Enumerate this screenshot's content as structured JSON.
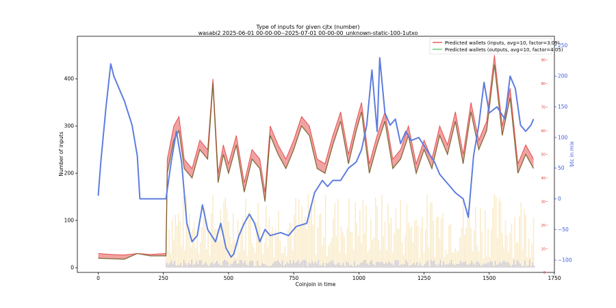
{
  "chart_data": {
    "type": "line",
    "title": "Type of inputs for given cjtx (number)",
    "subtitle": "wasabi2 2025-06-01 00-00-00--2025-07-01 00-00-00_unknown-static-100-1utxo",
    "xlabel": "Coinjoin in time",
    "ylabel": "Number of inputs",
    "y2label": "btc in mix",
    "xlim": [
      -80,
      1750
    ],
    "ylim": [
      -10,
      490
    ],
    "y2lim": [
      -120,
      265
    ],
    "y3lim": [
      0,
      100
    ],
    "x_ticks": [
      "0",
      "250",
      "500",
      "750",
      "1000",
      "1250",
      "1500",
      "1750"
    ],
    "y_ticks": [
      "0",
      "100",
      "200",
      "300",
      "400"
    ],
    "y2_ticks": [
      "−100",
      "−50",
      "0",
      "50",
      "100",
      "150",
      "200",
      "250"
    ],
    "y3_ticks": [
      "0",
      "10",
      "20",
      "30",
      "40",
      "50",
      "60",
      "70",
      "80",
      "90"
    ],
    "legend_position": "top-right",
    "grid": false,
    "series": [
      {
        "name": "Predicted wallets (inputs, avg=10, factor=3.09)",
        "color": "#e03131",
        "x": [
          0,
          50,
          100,
          150,
          200,
          260,
          265,
          290,
          310,
          330,
          360,
          390,
          420,
          440,
          460,
          480,
          500,
          530,
          560,
          590,
          620,
          640,
          660,
          690,
          720,
          750,
          780,
          810,
          840,
          870,
          900,
          930,
          960,
          990,
          1010,
          1040,
          1070,
          1100,
          1130,
          1160,
          1190,
          1220,
          1250,
          1280,
          1310,
          1340,
          1370,
          1400,
          1430,
          1460,
          1490,
          1520,
          1550,
          1580,
          1610,
          1640,
          1670
        ],
        "values": [
          30,
          28,
          27,
          30,
          28,
          30,
          230,
          300,
          320,
          230,
          210,
          270,
          250,
          400,
          200,
          260,
          220,
          280,
          180,
          250,
          230,
          160,
          300,
          260,
          230,
          270,
          320,
          300,
          230,
          220,
          280,
          330,
          240,
          310,
          350,
          220,
          280,
          330,
          230,
          250,
          300,
          220,
          270,
          230,
          300,
          260,
          330,
          240,
          350,
          270,
          310,
          450,
          300,
          380,
          220,
          260,
          230
        ]
      },
      {
        "name": "Predicted wallets (outputs, avg=10, factor=4.05)",
        "color": "#40c057",
        "x": [
          0,
          50,
          100,
          150,
          200,
          260,
          265,
          290,
          310,
          330,
          360,
          390,
          420,
          440,
          460,
          480,
          500,
          530,
          560,
          590,
          620,
          640,
          660,
          690,
          720,
          750,
          780,
          810,
          840,
          870,
          900,
          930,
          960,
          990,
          1010,
          1040,
          1070,
          1100,
          1130,
          1160,
          1190,
          1220,
          1250,
          1280,
          1310,
          1340,
          1370,
          1400,
          1430,
          1460,
          1490,
          1520,
          1550,
          1580,
          1610,
          1640,
          1670
        ],
        "values": [
          20,
          19,
          18,
          30,
          25,
          25,
          200,
          270,
          290,
          210,
          190,
          250,
          230,
          390,
          180,
          240,
          200,
          260,
          160,
          230,
          210,
          140,
          280,
          240,
          210,
          250,
          300,
          280,
          210,
          200,
          260,
          310,
          220,
          290,
          330,
          200,
          260,
          310,
          210,
          230,
          280,
          200,
          250,
          210,
          280,
          240,
          310,
          220,
          330,
          250,
          290,
          430,
          280,
          360,
          200,
          240,
          210
        ]
      },
      {
        "name": "btc in mix",
        "axis": "right",
        "color": "#5c7cdf",
        "x": [
          0,
          10,
          30,
          48,
          60,
          80,
          100,
          130,
          150,
          160,
          200,
          230,
          260,
          280,
          300,
          320,
          340,
          360,
          380,
          400,
          420,
          450,
          470,
          490,
          510,
          520,
          540,
          560,
          580,
          600,
          620,
          640,
          660,
          700,
          730,
          760,
          800,
          830,
          860,
          880,
          900,
          930,
          960,
          990,
          1010,
          1030,
          1050,
          1070,
          1080,
          1100,
          1120,
          1140,
          1160,
          1180,
          1200,
          1230,
          1260,
          1290,
          1310,
          1330,
          1350,
          1370,
          1400,
          1420,
          1440,
          1460,
          1480,
          1500,
          1530,
          1560,
          1580,
          1600,
          1620,
          1640,
          1660,
          1670
        ],
        "values": [
          5,
          60,
          150,
          220,
          200,
          180,
          160,
          120,
          70,
          0,
          0,
          0,
          0,
          60,
          110,
          60,
          -40,
          -70,
          -60,
          -10,
          -50,
          -70,
          -40,
          -80,
          -95,
          -90,
          -60,
          -40,
          -25,
          -40,
          -70,
          -50,
          -60,
          -55,
          -60,
          -45,
          -40,
          10,
          30,
          20,
          30,
          30,
          50,
          60,
          80,
          120,
          210,
          110,
          230,
          140,
          120,
          130,
          90,
          110,
          95,
          100,
          80,
          60,
          40,
          30,
          20,
          10,
          0,
          -30,
          70,
          120,
          190,
          140,
          150,
          130,
          200,
          180,
          120,
          110,
          120,
          130
        ]
      }
    ]
  }
}
